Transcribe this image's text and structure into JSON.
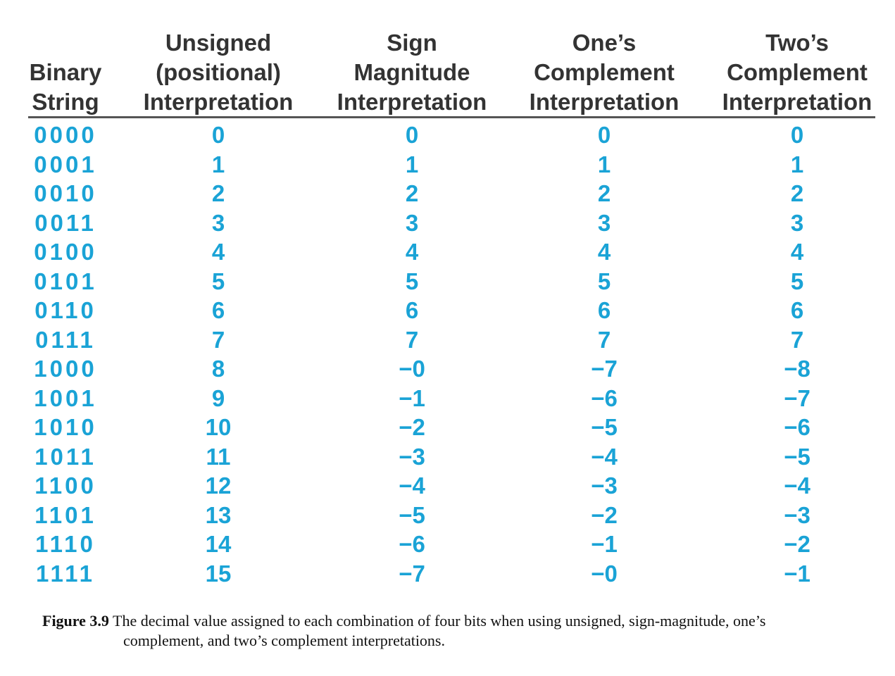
{
  "table": {
    "columns": [
      {
        "header_lines": [
          "",
          "Binary",
          "String"
        ]
      },
      {
        "header_lines": [
          "Unsigned",
          "(positional)",
          "Interpretation"
        ]
      },
      {
        "header_lines": [
          "Sign",
          "Magnitude",
          "Interpretation"
        ]
      },
      {
        "header_lines": [
          "One’s",
          "Complement",
          "Interpretation"
        ]
      },
      {
        "header_lines": [
          "Two’s",
          "Complement",
          "Interpretation"
        ]
      }
    ],
    "rows": [
      [
        "0000",
        "0",
        "0",
        "0",
        "0"
      ],
      [
        "0001",
        "1",
        "1",
        "1",
        "1"
      ],
      [
        "0010",
        "2",
        "2",
        "2",
        "2"
      ],
      [
        "0011",
        "3",
        "3",
        "3",
        "3"
      ],
      [
        "0100",
        "4",
        "4",
        "4",
        "4"
      ],
      [
        "0101",
        "5",
        "5",
        "5",
        "5"
      ],
      [
        "0110",
        "6",
        "6",
        "6",
        "6"
      ],
      [
        "0111",
        "7",
        "7",
        "7",
        "7"
      ],
      [
        "1000",
        "8",
        "−0",
        "−7",
        "−8"
      ],
      [
        "1001",
        "9",
        "−1",
        "−6",
        "−7"
      ],
      [
        "1010",
        "10",
        "−2",
        "−5",
        "−6"
      ],
      [
        "1011",
        "11",
        "−3",
        "−4",
        "−5"
      ],
      [
        "1100",
        "12",
        "−4",
        "−3",
        "−4"
      ],
      [
        "1101",
        "13",
        "−5",
        "−2",
        "−3"
      ],
      [
        "1110",
        "14",
        "−6",
        "−1",
        "−2"
      ],
      [
        "1111",
        "15",
        "−7",
        "−0",
        "−1"
      ]
    ]
  },
  "caption": {
    "label": "Figure 3.9",
    "line1": " The decimal value assigned to each combination of four bits when using unsigned, sign-magnitude, one’s",
    "line2": "complement, and two’s complement interpretations."
  },
  "colors": {
    "value_text": "#1aa3d6",
    "header_text": "#333333",
    "rule": "#555555"
  }
}
